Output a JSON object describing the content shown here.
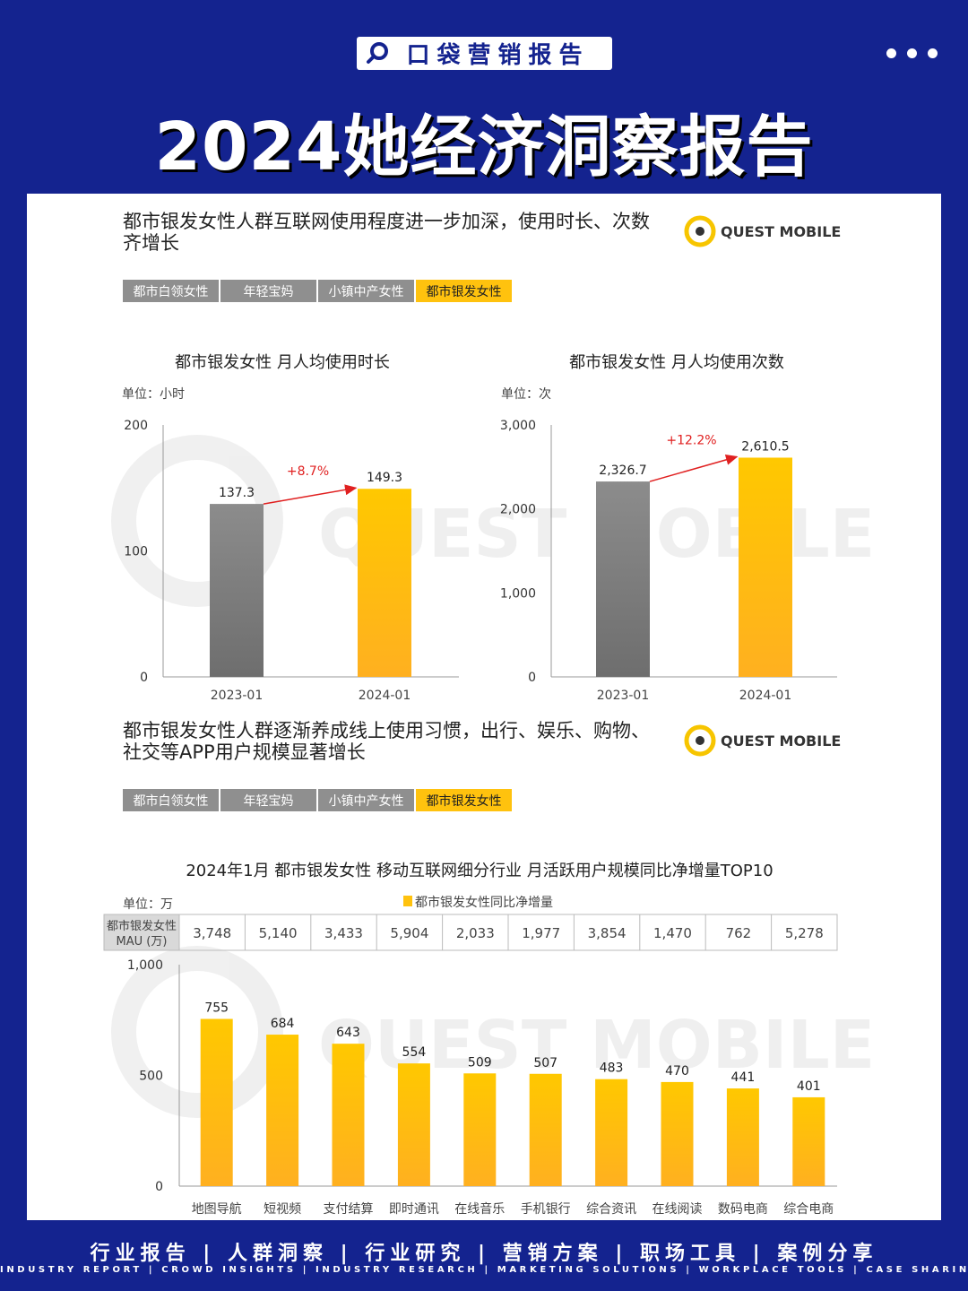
{
  "header": {
    "brand_label": "口袋营销报告",
    "main_title": "2024她经济洞察报告",
    "menu_icon": "more-dots-icon"
  },
  "section1": {
    "headline_line1": "都市银发女性人群互联网使用程度进一步加深，使用时长、次数",
    "headline_line2": "齐增长",
    "logo_text": "QUEST MOBILE",
    "tabs": [
      "都市白领女性",
      "年轻宝妈",
      "小镇中产女性",
      "都市银发女性"
    ],
    "active_tab": 3
  },
  "section2": {
    "headline_line1": "都市银发女性人群逐渐养成线上使用习惯，出行、娱乐、购物、",
    "headline_line2": "社交等APP用户规模显著增长",
    "logo_text": "QUEST MOBILE",
    "tabs": [
      "都市白领女性",
      "年轻宝妈",
      "小镇中产女性",
      "都市银发女性"
    ],
    "active_tab": 3
  },
  "watermark": "QUEST MOBILE",
  "colors": {
    "navy": "#14238f",
    "gold": "#ffc20e",
    "gray_bar": "#8a8a8a",
    "growth_red": "#e02020"
  },
  "chart_data": [
    {
      "type": "bar",
      "title": "都市银发女性 月人均使用时长",
      "unit": "单位：小时",
      "categories": [
        "2023-01",
        "2024-01"
      ],
      "values": [
        137.3,
        149.3
      ],
      "value_labels": [
        "137.3",
        "149.3"
      ],
      "growth_label": "+8.7%",
      "ylim": [
        0,
        200
      ],
      "yticks": [
        0,
        100,
        200
      ],
      "ytick_labels": [
        "0",
        "100",
        "200"
      ]
    },
    {
      "type": "bar",
      "title": "都市银发女性 月人均使用次数",
      "unit": "单位：次",
      "categories": [
        "2023-01",
        "2024-01"
      ],
      "values": [
        2326.7,
        2610.5
      ],
      "value_labels": [
        "2,326.7",
        "2,610.5"
      ],
      "growth_label": "+12.2%",
      "ylim": [
        0,
        3000
      ],
      "yticks": [
        0,
        1000,
        2000,
        3000
      ],
      "ytick_labels": [
        "0",
        "1,000",
        "2,000",
        "3,000"
      ]
    },
    {
      "type": "bar",
      "title": "2024年1月 都市银发女性 移动互联网细分行业 月活跃用户规模同比净增量TOP10",
      "unit": "单位：万",
      "legend": "都市银发女性同比净增量",
      "categories": [
        "地图导航",
        "短视频",
        "支付结算",
        "即时通讯",
        "在线音乐",
        "手机银行",
        "综合资讯",
        "在线阅读",
        "数码电商",
        "综合电商"
      ],
      "values": [
        755,
        684,
        643,
        554,
        509,
        507,
        483,
        470,
        441,
        401
      ],
      "ylim": [
        0,
        1000
      ],
      "yticks": [
        0,
        500,
        1000
      ],
      "ytick_labels": [
        "0",
        "500",
        "1,000"
      ],
      "table_header_line1": "都市银发女性",
      "table_header_line2": "MAU (万)",
      "mau_row": [
        "3,748",
        "5,140",
        "3,433",
        "5,904",
        "2,033",
        "1,977",
        "3,854",
        "1,470",
        "762",
        "5,278"
      ]
    }
  ],
  "footer": {
    "cn": "行业报告 | 人群洞察 | 行业研究 | 营销方案 | 职场工具 | 案例分享",
    "en": "INDUSTRY REPORT | CROWD INSIGHTS | INDUSTRY RESEARCH | MARKETING SOLUTIONS | WORKPLACE TOOLS | CASE SHARING"
  }
}
